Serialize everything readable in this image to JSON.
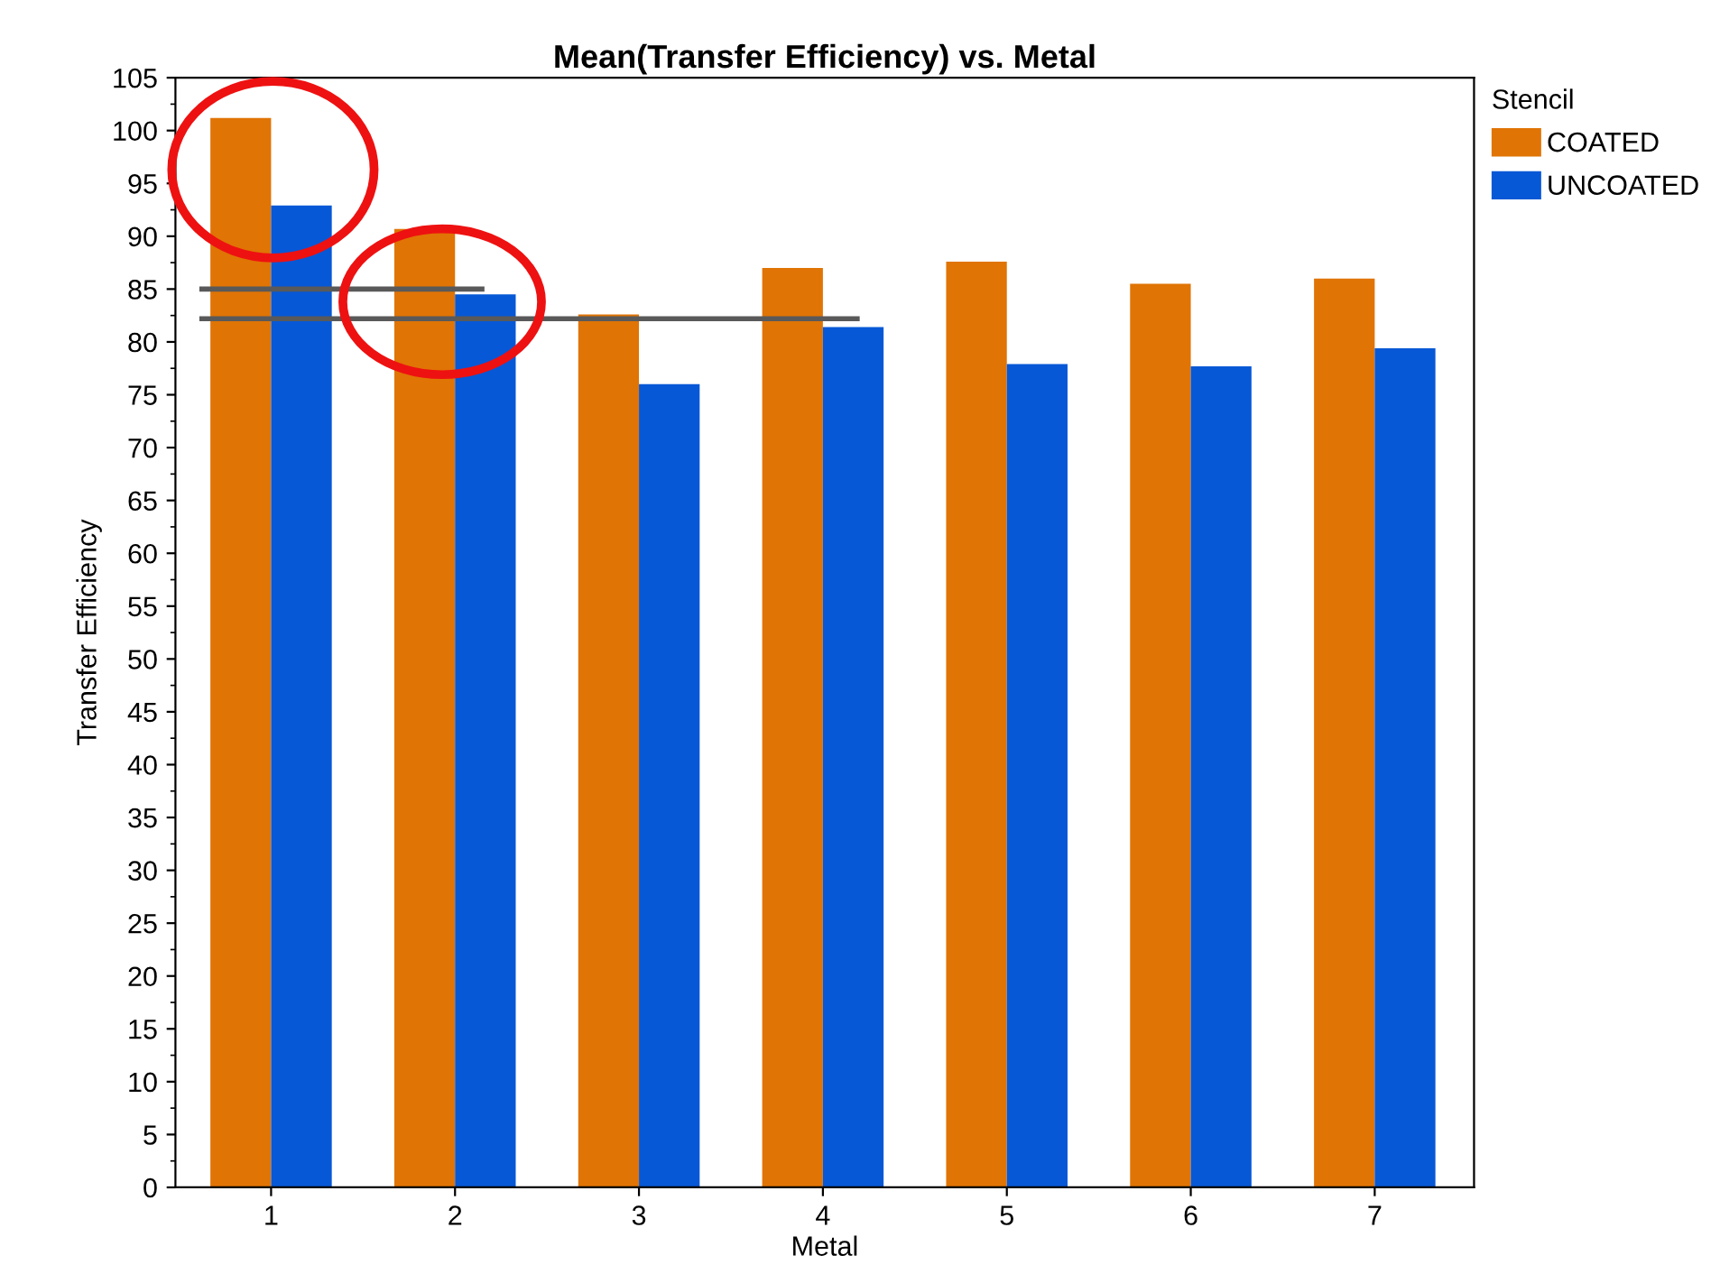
{
  "chart_data": {
    "type": "bar",
    "title": "Mean(Transfer Efficiency) vs. Metal",
    "xlabel": "Metal",
    "ylabel": "Transfer Efficiency",
    "legend_title": "Stencil",
    "categories": [
      "1",
      "2",
      "3",
      "4",
      "5",
      "6",
      "7"
    ],
    "series": [
      {
        "name": "COATED",
        "color": "#e07405",
        "values": [
          101.2,
          90.7,
          82.6,
          87.0,
          87.6,
          85.5,
          86.0
        ]
      },
      {
        "name": "UNCOATED",
        "color": "#0758d6",
        "values": [
          92.9,
          84.5,
          76.0,
          81.4,
          77.9,
          77.7,
          79.4
        ]
      }
    ],
    "ylim": [
      0,
      105
    ],
    "yticks": [
      0,
      5,
      10,
      15,
      20,
      25,
      30,
      35,
      40,
      45,
      50,
      55,
      60,
      65,
      70,
      75,
      80,
      85,
      90,
      95,
      100,
      105
    ],
    "ref_lines": [
      {
        "axis": "y",
        "value": 85.0,
        "color": "#595959"
      },
      {
        "axis": "y",
        "value": 82.2,
        "color": "#595959"
      }
    ],
    "grid": false,
    "legend": "top right"
  }
}
